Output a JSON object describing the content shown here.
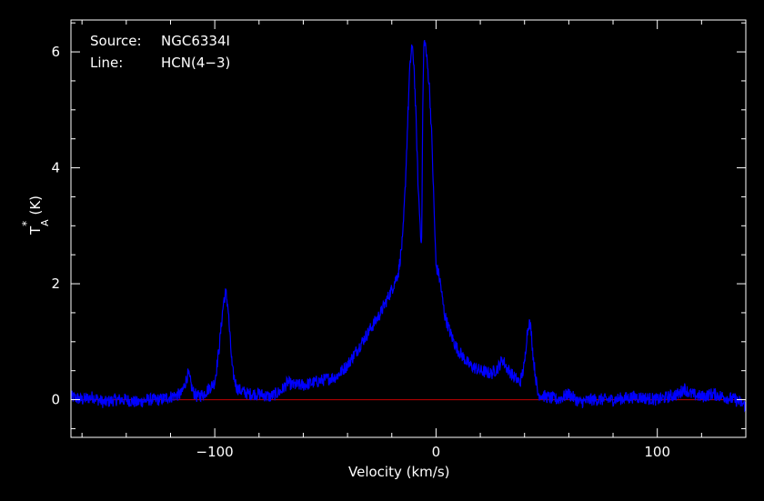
{
  "chart_data": {
    "type": "line",
    "xlabel": "Velocity (km/s)",
    "ylabel_main": "T",
    "ylabel_sup": "*",
    "ylabel_sub": "A",
    "ylabel_unit": "(K)",
    "xlim": [
      -165,
      140
    ],
    "ylim": [
      -0.65,
      6.55
    ],
    "xticks_major": [
      -100,
      0,
      100
    ],
    "xtick_labels": [
      "−100",
      "0",
      "100"
    ],
    "yticks_major": [
      0,
      2,
      4,
      6
    ],
    "ytick_labels": [
      "0",
      "2",
      "4",
      "6"
    ],
    "grid": false,
    "legend": "none",
    "annotations": {
      "source_label": "Source:",
      "source_value": "NGC6334I",
      "line_label": "Line:",
      "line_value": "HCN(4−3)"
    },
    "baseline": {
      "y": 0,
      "color": "#c00000"
    },
    "series": [
      {
        "color": "#0000ff",
        "x": [
          -165,
          -160,
          -155,
          -150,
          -145,
          -140,
          -135,
          -130,
          -125,
          -120,
          -115,
          -112,
          -110,
          -108,
          -105,
          -100,
          -98,
          -96,
          -95,
          -94,
          -93,
          -92,
          -90,
          -88,
          -85,
          -80,
          -75,
          -70,
          -67,
          -65,
          -60,
          -55,
          -50,
          -45,
          -40,
          -35,
          -30,
          -25,
          -20,
          -17,
          -15,
          -14,
          -13,
          -12,
          -11,
          -10,
          -9,
          -8,
          -7,
          -6.5,
          -6,
          -5.5,
          -5,
          -4,
          -3,
          -2,
          -1,
          0,
          1,
          2,
          3,
          4,
          6,
          8,
          10,
          12,
          15,
          20,
          25,
          28,
          30,
          32,
          35,
          38,
          40,
          41,
          42,
          43,
          44,
          46,
          50,
          55,
          60,
          65,
          70,
          80,
          90,
          100,
          105,
          110,
          112,
          115,
          120,
          125,
          130,
          135,
          140
        ],
        "y": [
          0.05,
          0.0,
          0.05,
          -0.05,
          0.0,
          0.0,
          -0.05,
          0.0,
          0.0,
          0.05,
          0.1,
          0.45,
          0.15,
          0.05,
          0.1,
          0.3,
          0.9,
          1.7,
          1.85,
          1.6,
          1.0,
          0.5,
          0.2,
          0.15,
          0.1,
          0.1,
          0.05,
          0.15,
          0.3,
          0.25,
          0.25,
          0.3,
          0.35,
          0.4,
          0.6,
          0.9,
          1.2,
          1.5,
          1.9,
          2.2,
          2.8,
          3.6,
          4.6,
          5.6,
          6.1,
          5.8,
          4.8,
          3.6,
          2.9,
          2.7,
          5.0,
          6.1,
          6.2,
          5.8,
          5.4,
          4.6,
          3.4,
          2.3,
          2.2,
          2.0,
          1.7,
          1.45,
          1.2,
          1.0,
          0.85,
          0.75,
          0.6,
          0.5,
          0.45,
          0.55,
          0.7,
          0.55,
          0.4,
          0.3,
          0.6,
          1.1,
          1.35,
          1.2,
          0.7,
          0.1,
          0.05,
          0.0,
          0.1,
          -0.05,
          0.0,
          0.0,
          0.05,
          0.0,
          0.05,
          0.1,
          0.2,
          0.1,
          0.05,
          0.1,
          0.05,
          0.0,
          -0.1
        ]
      }
    ]
  }
}
